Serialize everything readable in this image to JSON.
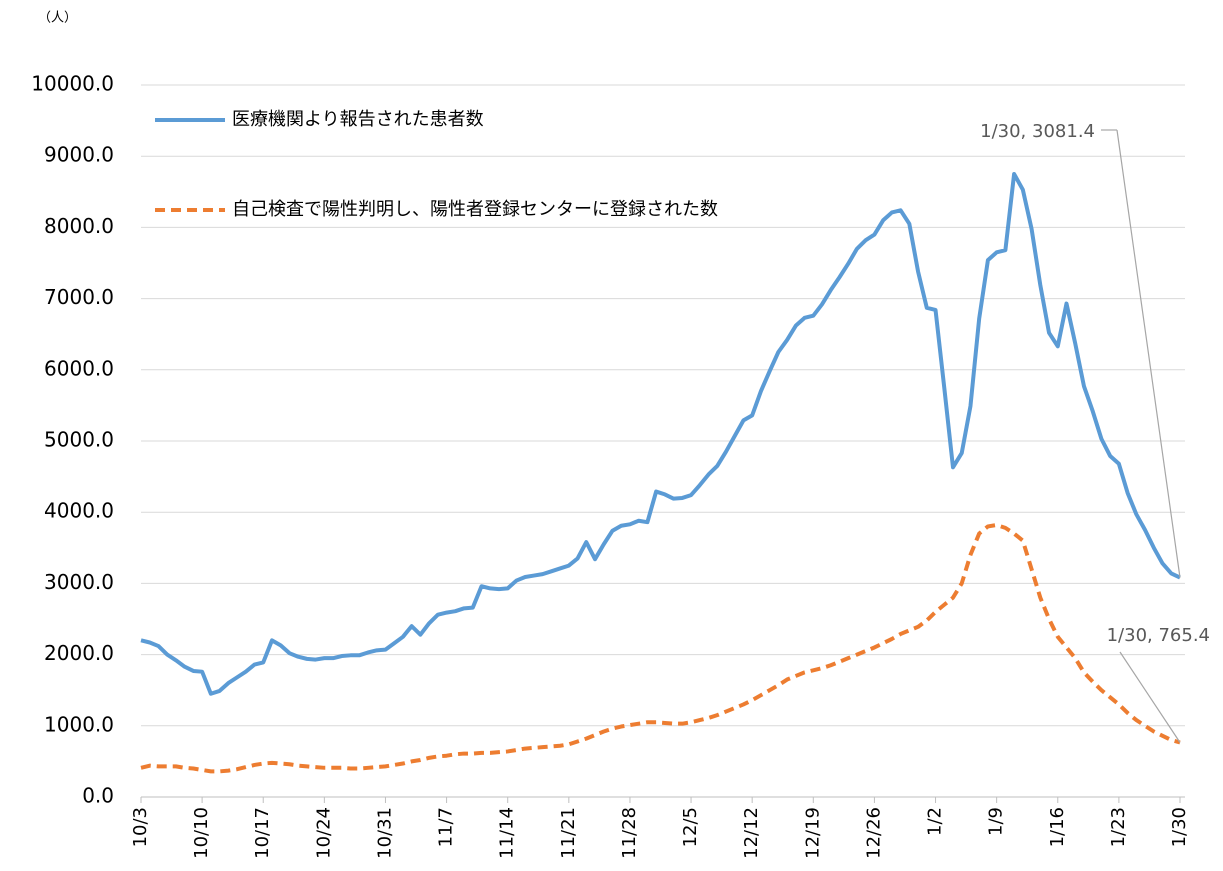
{
  "chart_data": {
    "type": "line",
    "y_unit": "（人）",
    "categories": [
      "10/3",
      null,
      null,
      null,
      null,
      null,
      null,
      "10/10",
      null,
      null,
      null,
      null,
      null,
      null,
      "10/17",
      null,
      null,
      null,
      null,
      null,
      null,
      "10/24",
      null,
      null,
      null,
      null,
      null,
      null,
      "10/31",
      null,
      null,
      null,
      null,
      null,
      null,
      "11/7",
      null,
      null,
      null,
      null,
      null,
      null,
      "11/14",
      null,
      null,
      null,
      null,
      null,
      null,
      "11/21",
      null,
      null,
      null,
      null,
      null,
      null,
      "11/28",
      null,
      null,
      null,
      null,
      null,
      null,
      "12/5",
      null,
      null,
      null,
      null,
      null,
      null,
      "12/12",
      null,
      null,
      null,
      null,
      null,
      null,
      "12/19",
      null,
      null,
      null,
      null,
      null,
      null,
      "12/26",
      null,
      null,
      null,
      null,
      null,
      null,
      "1/2",
      null,
      null,
      null,
      null,
      null,
      null,
      "1/9",
      null,
      null,
      null,
      null,
      null,
      null,
      "1/16",
      null,
      null,
      null,
      null,
      null,
      null,
      "1/23",
      null,
      null,
      null,
      null,
      null,
      null,
      "1/30"
    ],
    "series": [
      {
        "name": "医療機関より報告された患者数",
        "color": "#5b9bd5",
        "dashed": false,
        "values": [
          2200,
          2170,
          2120,
          2000,
          1920,
          1830,
          1770,
          1760,
          1450,
          1490,
          1600,
          1680,
          1760,
          1860,
          1890,
          2200,
          2130,
          2020,
          1970,
          1940,
          1930,
          1950,
          1950,
          1980,
          1990,
          1990,
          2030,
          2060,
          2070,
          2160,
          2250,
          2400,
          2280,
          2440,
          2560,
          2590,
          2610,
          2650,
          2660,
          2960,
          2930,
          2920,
          2930,
          3040,
          3090,
          3110,
          3130,
          3170,
          3210,
          3250,
          3350,
          3580,
          3340,
          3550,
          3740,
          3810,
          3830,
          3880,
          3860,
          4290,
          4250,
          4190,
          4200,
          4240,
          4380,
          4530,
          4650,
          4850,
          5070,
          5290,
          5360,
          5700,
          5980,
          6250,
          6420,
          6620,
          6730,
          6760,
          6920,
          7120,
          7300,
          7490,
          7700,
          7820,
          7900,
          8100,
          8210,
          8240,
          8050,
          7380,
          6870,
          6840,
          5750,
          4630,
          4830,
          5490,
          6720,
          7540,
          7650,
          7680,
          8750,
          8530,
          7980,
          7190,
          6520,
          6330,
          6930,
          6370,
          5770,
          5420,
          5030,
          4790,
          4680,
          4270,
          3970,
          3750,
          3500,
          3280,
          3140,
          3081.4
        ]
      },
      {
        "name": "自己検査で陽性判明し、陽性者登録センターに登録された数",
        "color": "#ed7d31",
        "dashed": true,
        "values": [
          410,
          440,
          430,
          430,
          430,
          410,
          400,
          380,
          360,
          360,
          370,
          390,
          420,
          450,
          470,
          480,
          470,
          460,
          440,
          430,
          420,
          410,
          410,
          410,
          400,
          400,
          410,
          420,
          430,
          450,
          470,
          500,
          520,
          550,
          570,
          580,
          600,
          610,
          610,
          620,
          620,
          630,
          640,
          660,
          680,
          690,
          700,
          710,
          720,
          740,
          780,
          820,
          870,
          920,
          960,
          990,
          1010,
          1030,
          1050,
          1050,
          1040,
          1030,
          1030,
          1050,
          1080,
          1110,
          1150,
          1200,
          1250,
          1300,
          1360,
          1430,
          1500,
          1570,
          1650,
          1700,
          1750,
          1780,
          1810,
          1850,
          1900,
          1950,
          2000,
          2050,
          2100,
          2160,
          2220,
          2290,
          2340,
          2390,
          2480,
          2600,
          2700,
          2800,
          3000,
          3400,
          3700,
          3800,
          3820,
          3780,
          3700,
          3600,
          3200,
          2800,
          2500,
          2250,
          2100,
          1950,
          1750,
          1620,
          1500,
          1400,
          1300,
          1180,
          1080,
          1000,
          920,
          860,
          800,
          765.4
        ]
      }
    ],
    "annotations": [
      {
        "text": "1/30, 3081.4"
      },
      {
        "text": "1/30, 765.4"
      }
    ],
    "ylim": [
      0,
      10000
    ],
    "yticks": [
      {
        "value": 0,
        "label": "0.0"
      },
      {
        "value": 1000,
        "label": "1000.0"
      },
      {
        "value": 2000,
        "label": "2000.0"
      },
      {
        "value": 3000,
        "label": "3000.0"
      },
      {
        "value": 4000,
        "label": "4000.0"
      },
      {
        "value": 5000,
        "label": "5000.0"
      },
      {
        "value": 6000,
        "label": "6000.0"
      },
      {
        "value": 7000,
        "label": "7000.0"
      },
      {
        "value": 8000,
        "label": "8000.0"
      },
      {
        "value": 9000,
        "label": "9000.0"
      },
      {
        "value": 10000,
        "label": "10000.0"
      }
    ],
    "grid": true
  }
}
